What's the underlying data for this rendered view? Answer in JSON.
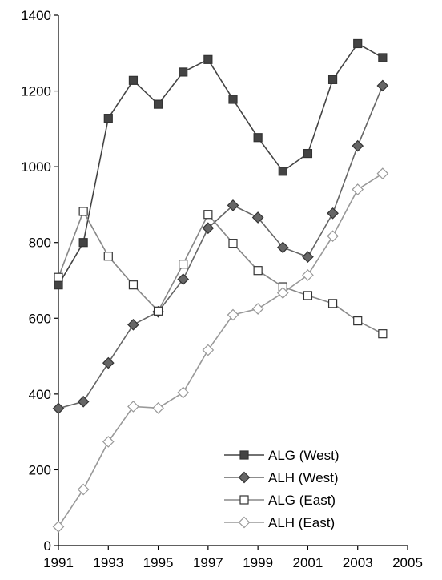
{
  "chart_data": {
    "type": "line",
    "x": [
      1991,
      1992,
      1993,
      1994,
      1995,
      1996,
      1997,
      1998,
      1999,
      2000,
      2001,
      2002,
      2003,
      2004
    ],
    "xlim": [
      1991,
      2005
    ],
    "ylim": [
      0,
      1400
    ],
    "xticks": [
      1991,
      1993,
      1995,
      1997,
      1999,
      2001,
      2003,
      2005
    ],
    "yticks": [
      0,
      200,
      400,
      600,
      800,
      1000,
      1200,
      1400
    ],
    "grid": false,
    "legend_position": "bottom-right",
    "series": [
      {
        "name": "ALG (West)",
        "marker": "square-filled",
        "color": "#444444",
        "values": [
          688,
          800,
          1128,
          1228,
          1165,
          1250,
          1283,
          1178,
          1077,
          988,
          1035,
          1230,
          1325,
          1288
        ]
      },
      {
        "name": "ALH (West)",
        "marker": "diamond-filled",
        "color": "#666666",
        "values": [
          362,
          380,
          482,
          583,
          617,
          703,
          838,
          898,
          866,
          787,
          762,
          877,
          1055,
          1214
        ]
      },
      {
        "name": "ALG (East)",
        "marker": "square-open",
        "color": "#888888",
        "values": [
          708,
          882,
          764,
          688,
          619,
          743,
          874,
          798,
          726,
          683,
          660,
          639,
          593,
          559
        ]
      },
      {
        "name": "ALH (East)",
        "marker": "diamond-open",
        "color": "#999999",
        "values": [
          50,
          148,
          274,
          367,
          363,
          404,
          516,
          609,
          625,
          667,
          714,
          817,
          940,
          982
        ]
      }
    ]
  }
}
